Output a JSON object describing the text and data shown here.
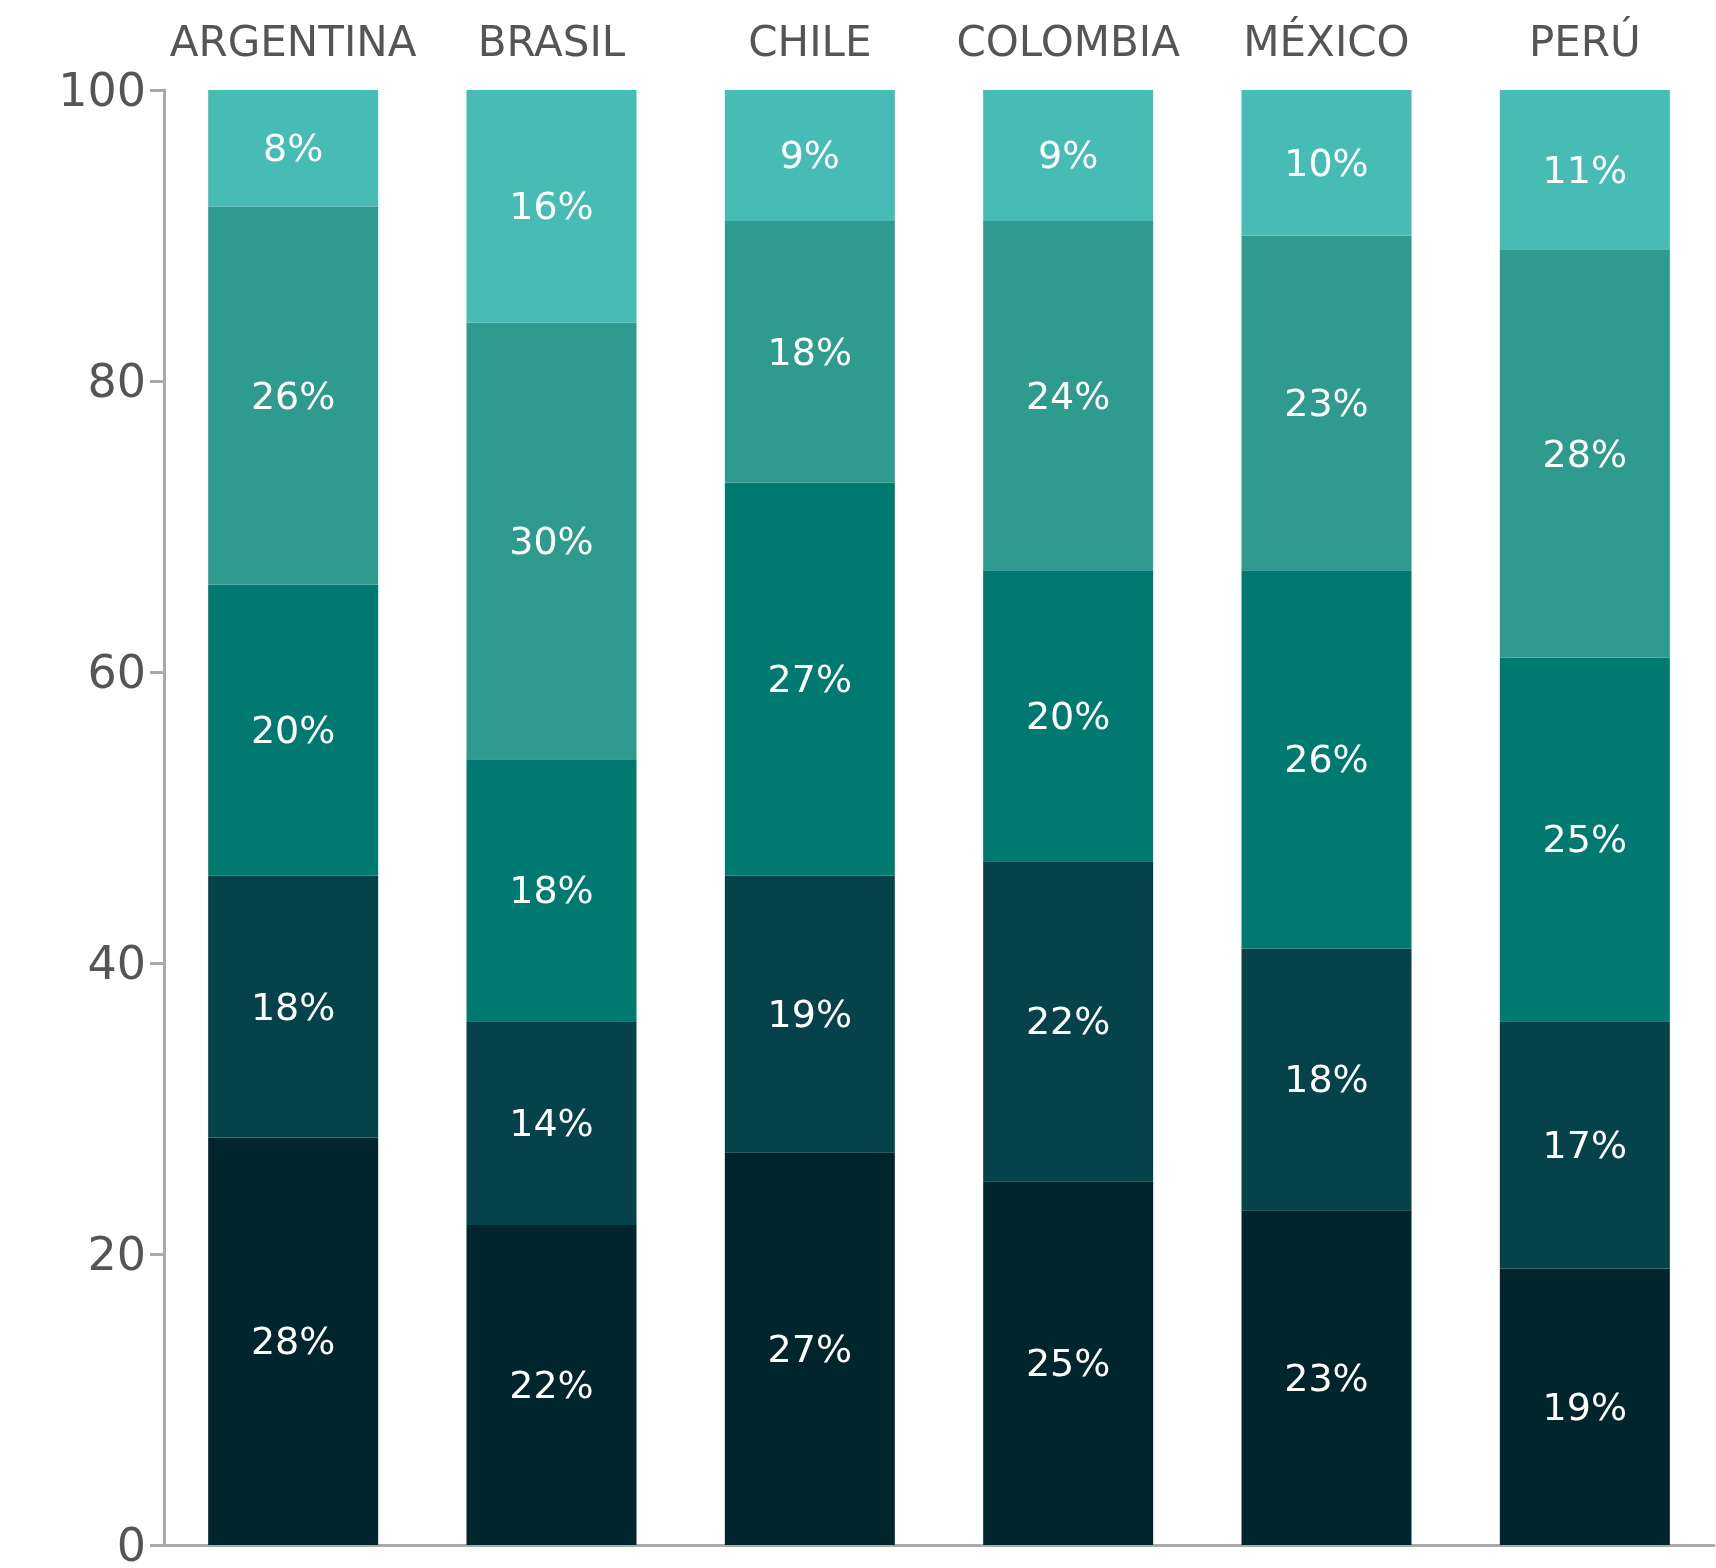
{
  "chart_data": {
    "type": "bar",
    "stacked": true,
    "categories": [
      "ARGENTINA",
      "BRASIL",
      "CHILE",
      "COLOMBIA",
      "MÉXICO",
      "PERÚ"
    ],
    "series": [
      {
        "color": "#00252c",
        "values": [
          28,
          22,
          27,
          25,
          23,
          19
        ],
        "value_labels": [
          "28%",
          "22%",
          "27%",
          "25%",
          "23%",
          "19%"
        ]
      },
      {
        "color": "#05424a",
        "values": [
          18,
          14,
          19,
          22,
          18,
          17
        ],
        "value_labels": [
          "18%",
          "14%",
          "19%",
          "22%",
          "18%",
          "17%"
        ]
      },
      {
        "color": "#007a70",
        "values": [
          20,
          18,
          27,
          20,
          26,
          25
        ],
        "value_labels": [
          "20%",
          "18%",
          "27%",
          "20%",
          "26%",
          "25%"
        ]
      },
      {
        "color": "#2e9b8e",
        "values": [
          26,
          30,
          18,
          24,
          23,
          28
        ],
        "value_labels": [
          "26%",
          "30%",
          "18%",
          "24%",
          "23%",
          "28%"
        ]
      },
      {
        "color": "#47bcb4",
        "values": [
          8,
          16,
          9,
          9,
          10,
          11
        ],
        "value_labels": [
          "8%",
          "16%",
          "9%",
          "9%",
          "10%",
          "11%"
        ]
      }
    ],
    "ylim": [
      0,
      100
    ],
    "yticks": [
      0,
      20,
      40,
      60,
      80,
      100
    ],
    "grid": false
  }
}
